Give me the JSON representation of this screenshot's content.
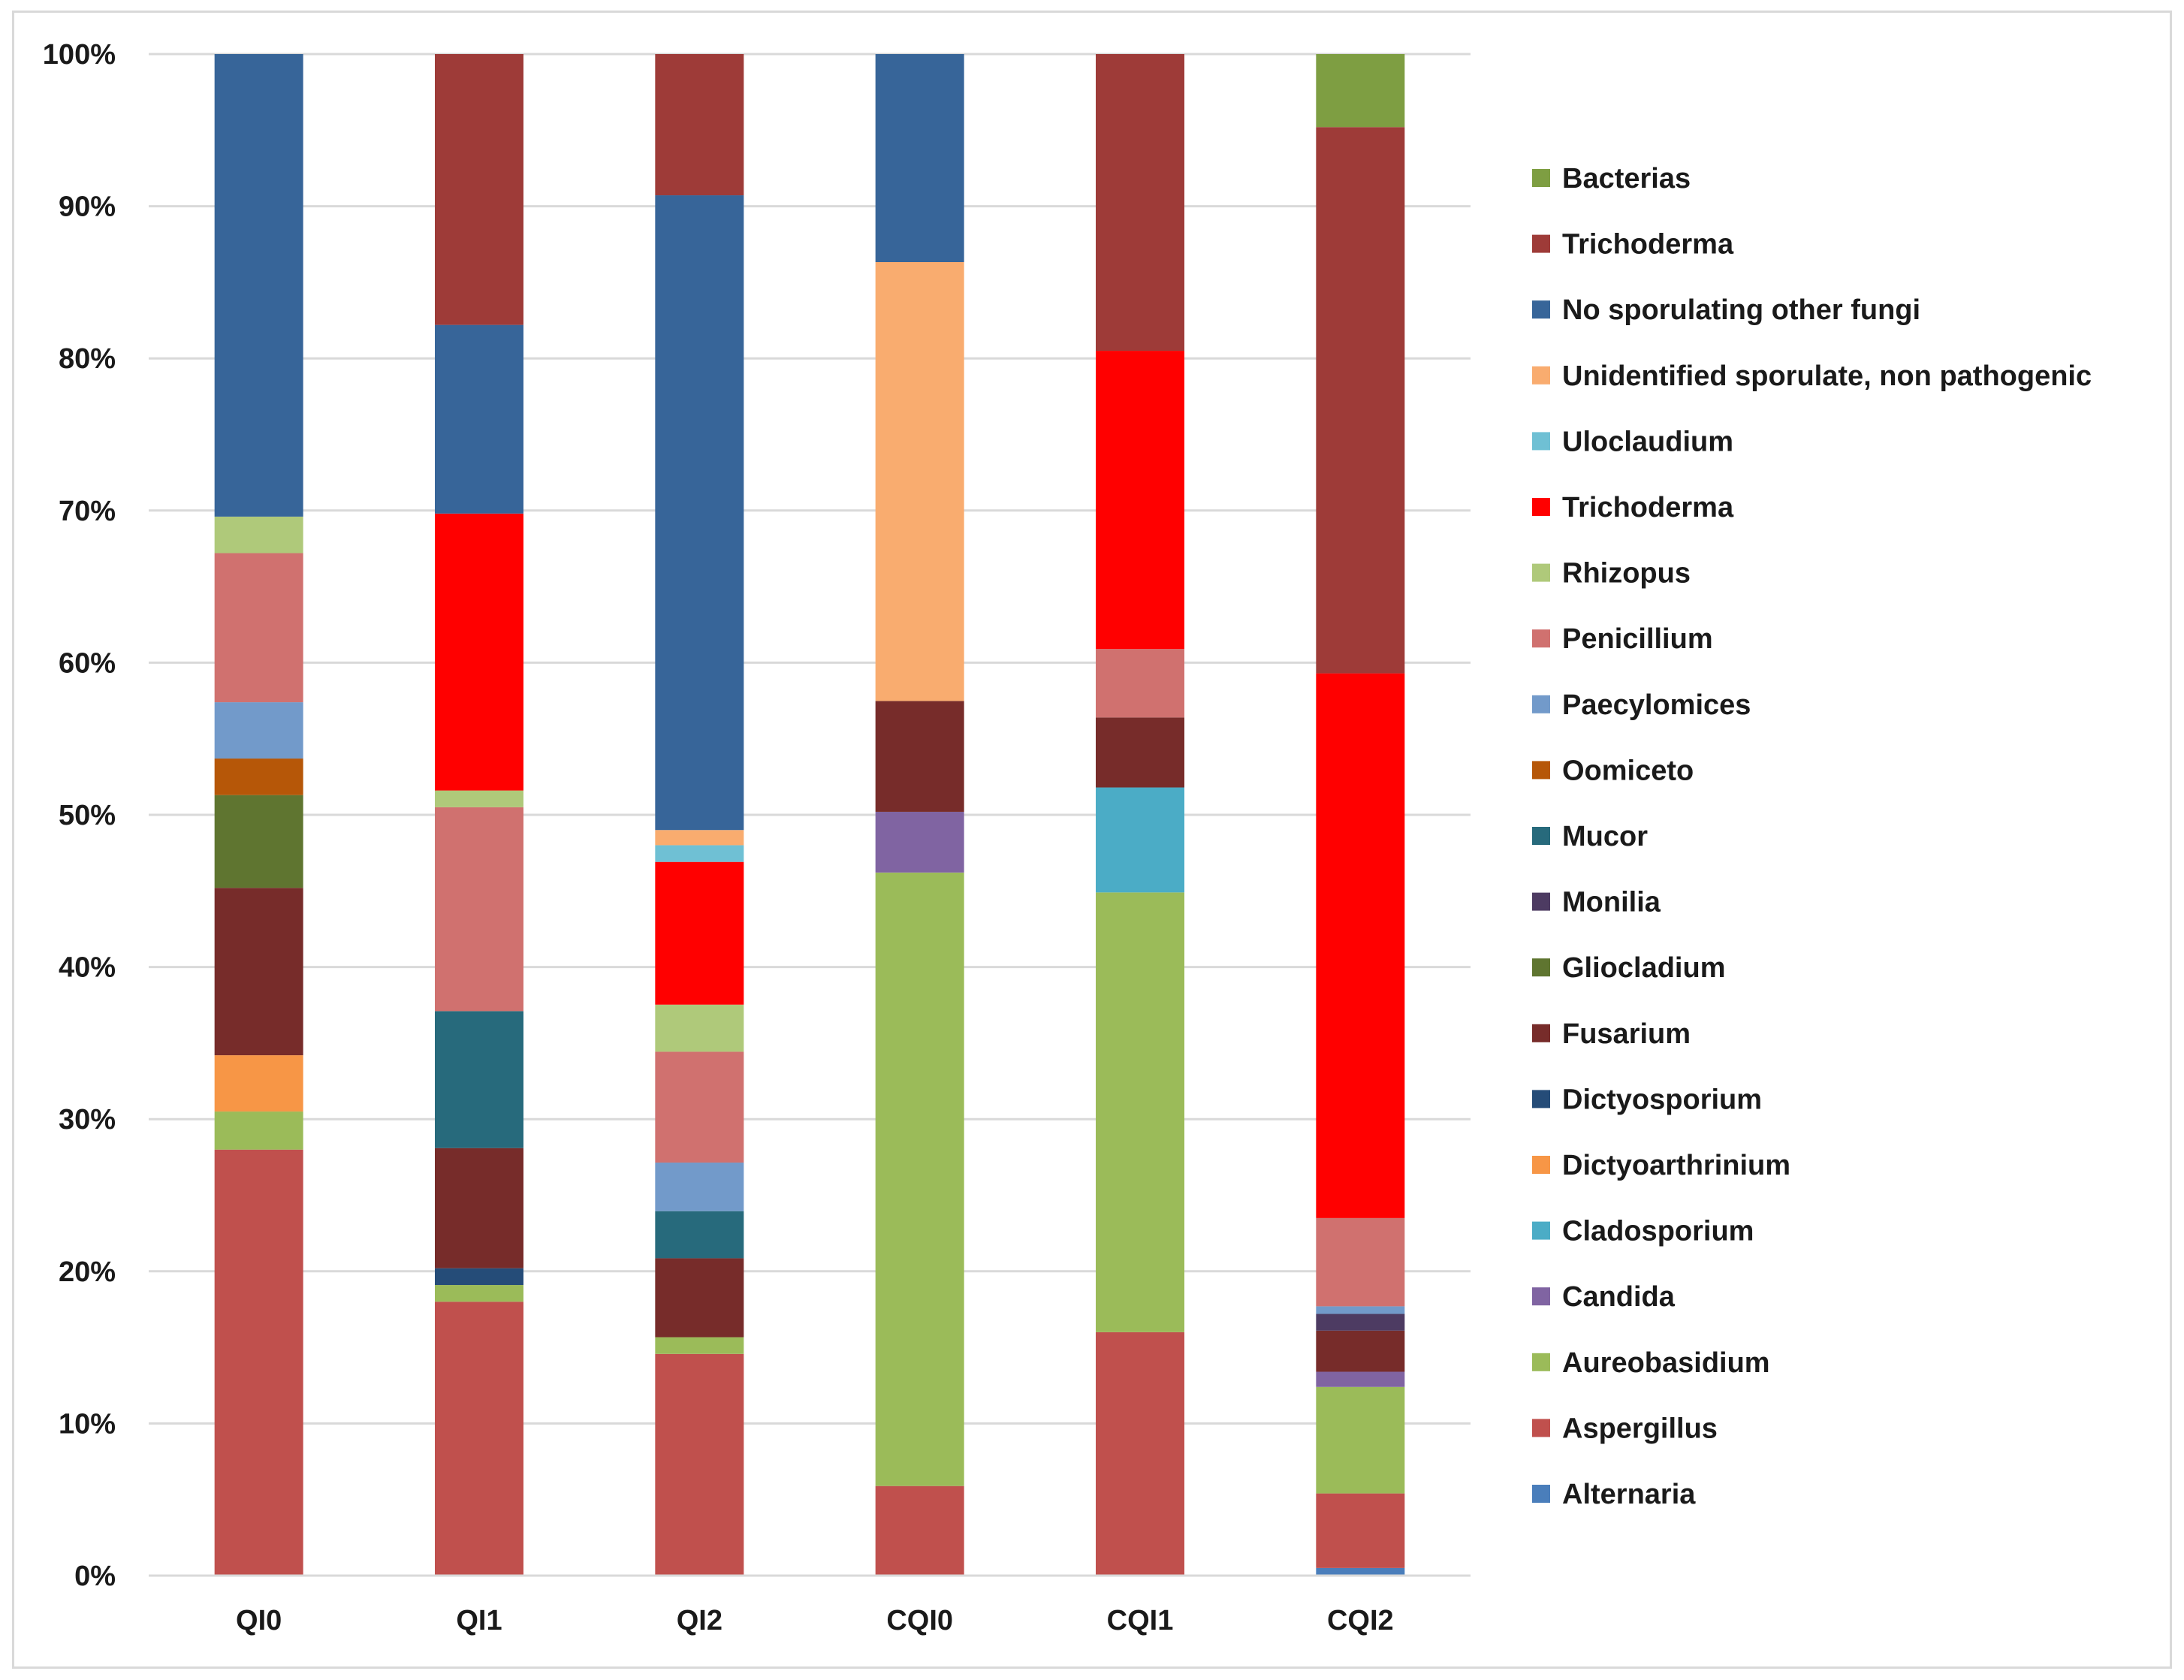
{
  "chart_data": {
    "type": "bar",
    "stacked": true,
    "normalized": true,
    "title": "",
    "xlabel": "",
    "ylabel": "",
    "ylim": [
      0,
      100
    ],
    "yticks": [
      "0%",
      "10%",
      "20%",
      "30%",
      "40%",
      "50%",
      "60%",
      "70%",
      "80%",
      "90%",
      "100%"
    ],
    "categories": [
      "QI0",
      "QI1",
      "QI2",
      "CQI0",
      "CQI1",
      "CQI2"
    ],
    "grid": true,
    "legend_position": "right",
    "series": [
      {
        "name": "Alternaria",
        "color": "#4a7ebb",
        "values": [
          0,
          0,
          0,
          0,
          0,
          0.5
        ]
      },
      {
        "name": "Aspergillus",
        "color": "#c0504d",
        "values": [
          28.0,
          18.0,
          14.6,
          5.9,
          16.0,
          4.9
        ]
      },
      {
        "name": "Aureobasidium",
        "color": "#9bbb59",
        "values": [
          2.5,
          1.1,
          1.1,
          40.4,
          28.9,
          7.0
        ]
      },
      {
        "name": "Candida",
        "color": "#8064a2",
        "values": [
          0,
          0,
          0,
          4.0,
          0,
          1.0
        ]
      },
      {
        "name": "Cladosporium",
        "color": "#4bacc6",
        "values": [
          0,
          0,
          0,
          0,
          6.9,
          0
        ]
      },
      {
        "name": "Dictyoarthrinium",
        "color": "#f79646",
        "values": [
          3.7,
          0,
          0,
          0,
          0,
          0
        ]
      },
      {
        "name": "Dictyosporium",
        "color": "#254c78",
        "values": [
          0,
          1.1,
          0,
          0,
          0,
          0
        ]
      },
      {
        "name": "Fusarium",
        "color": "#772c2a",
        "values": [
          11.0,
          7.9,
          5.2,
          7.3,
          4.6,
          2.7
        ]
      },
      {
        "name": "Gliocladium",
        "color": "#5f7530",
        "values": [
          6.1,
          0,
          0,
          0,
          0,
          0
        ]
      },
      {
        "name": "Monilia",
        "color": "#4d3b62",
        "values": [
          0,
          0,
          0,
          0,
          0,
          1.1
        ]
      },
      {
        "name": "Mucor",
        "color": "#276a7c",
        "values": [
          0,
          9.0,
          3.1,
          0,
          0,
          0
        ]
      },
      {
        "name": "Oomiceto",
        "color": "#b65708",
        "values": [
          2.4,
          0,
          0,
          0,
          0,
          0
        ]
      },
      {
        "name": "Paecylomices",
        "color": "#729aca",
        "values": [
          3.7,
          0,
          3.2,
          0,
          0,
          0.5
        ]
      },
      {
        "name": "Penicillium",
        "color": "#d0716f",
        "values": [
          9.8,
          13.4,
          7.3,
          0,
          4.5,
          5.8
        ]
      },
      {
        "name": "Rhizopus",
        "color": "#afc97a",
        "values": [
          2.4,
          1.1,
          3.1,
          0,
          0,
          0
        ]
      },
      {
        "name": "Trichoderma",
        "color": "#ff0000",
        "values": [
          0,
          18.2,
          9.4,
          0,
          19.6,
          35.8
        ]
      },
      {
        "name": "Uloclaudium",
        "color": "#6fc0d4",
        "values": [
          0,
          0,
          1.1,
          0,
          0,
          0
        ]
      },
      {
        "name": "Unidentified sporulate, non pathogenic",
        "color": "#f9ac6f",
        "values": [
          0,
          0,
          1.0,
          28.9,
          0,
          0
        ]
      },
      {
        "name": "No sporulating other fungi",
        "color": "#376599",
        "values": [
          30.4,
          12.4,
          41.8,
          13.7,
          0,
          0
        ]
      },
      {
        "name": "Trichoderma",
        "color": "#9e3b38",
        "values": [
          0,
          17.8,
          9.3,
          0,
          19.5,
          35.9
        ]
      },
      {
        "name": "Bacterias",
        "color": "#7e9e42",
        "values": [
          0,
          0,
          0,
          0,
          0,
          4.8
        ]
      }
    ]
  }
}
